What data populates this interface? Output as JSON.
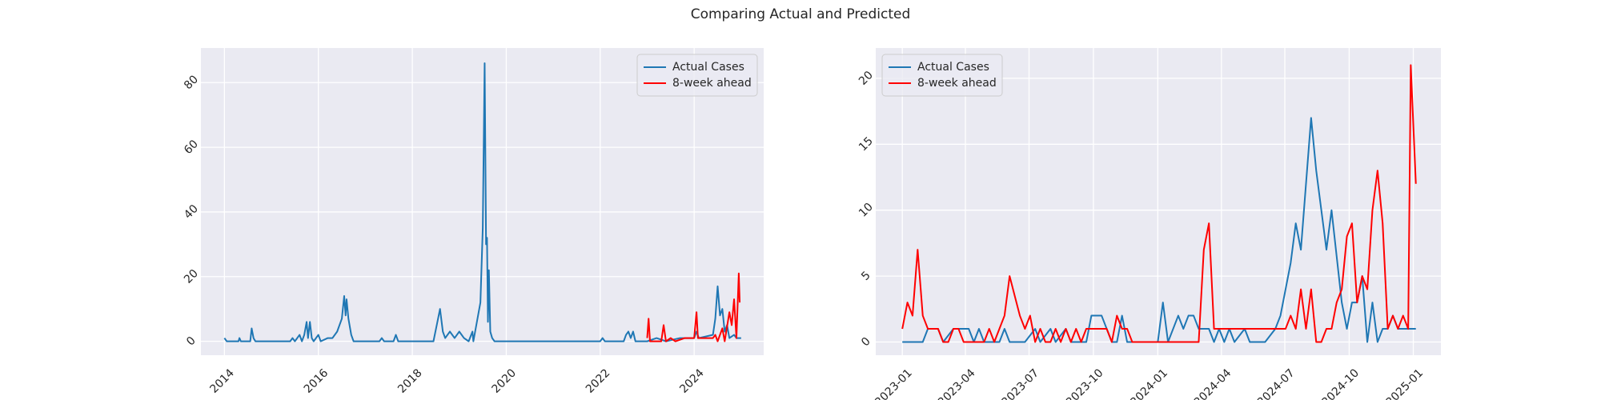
{
  "title": "Comparing Actual and Predicted",
  "chart_data": [
    {
      "type": "line",
      "legend": "upper right",
      "grid": true,
      "xlim": [
        2013.5,
        2025.48
      ],
      "xticks": [
        2014,
        2016,
        2018,
        2020,
        2022,
        2024
      ],
      "ylim": [
        -4.3,
        90.7
      ],
      "yticks": [
        0,
        20,
        40,
        60,
        80
      ],
      "series": [
        {
          "name": "Actual Cases",
          "color": "#1f77b4",
          "x": [
            2014.0,
            2014.05,
            2014.3,
            2014.32,
            2014.35,
            2014.55,
            2014.58,
            2014.62,
            2014.66,
            2015.4,
            2015.45,
            2015.5,
            2015.6,
            2015.65,
            2015.7,
            2015.75,
            2015.78,
            2015.82,
            2015.86,
            2015.9,
            2016.0,
            2016.05,
            2016.2,
            2016.3,
            2016.4,
            2016.5,
            2016.55,
            2016.58,
            2016.6,
            2016.64,
            2016.7,
            2016.75,
            2017.3,
            2017.35,
            2017.4,
            2017.6,
            2017.65,
            2017.7,
            2018.45,
            2018.52,
            2018.59,
            2018.65,
            2018.7,
            2018.8,
            2018.9,
            2019.0,
            2019.1,
            2019.2,
            2019.28,
            2019.3,
            2019.45,
            2019.5,
            2019.54,
            2019.57,
            2019.59,
            2019.61,
            2019.63,
            2019.66,
            2019.7,
            2019.75,
            2022.0,
            2022.05,
            2022.1,
            2022.5,
            2022.55,
            2022.6,
            2022.65,
            2022.7,
            2022.75,
            2023.0,
            2023.2,
            2023.4,
            2023.7,
            2024.0,
            2024.05,
            2024.1,
            2024.4,
            2024.45,
            2024.5,
            2024.55,
            2024.6,
            2024.65,
            2024.7,
            2024.75,
            2024.85,
            2024.9,
            2025.0
          ],
          "values": [
            1,
            0,
            0,
            1,
            0,
            0,
            4,
            1,
            0,
            0,
            1,
            0,
            2,
            0,
            2,
            6,
            1,
            6,
            1,
            0,
            2,
            0,
            1,
            1,
            3,
            7,
            14,
            8,
            13,
            7,
            2,
            0,
            0,
            1,
            0,
            0,
            2,
            0,
            0,
            5,
            10,
            3,
            1,
            3,
            1,
            3,
            1,
            0,
            3,
            0,
            12,
            35,
            86,
            30,
            32,
            6,
            22,
            3,
            1,
            0,
            0,
            1,
            0,
            0,
            2,
            3,
            1,
            3,
            0,
            0,
            1,
            0,
            1,
            1,
            3,
            1,
            2,
            7,
            17,
            8,
            10,
            3,
            5,
            1,
            2,
            1,
            1
          ]
        },
        {
          "name": "8-week ahead",
          "color": "#ff0000",
          "x": [
            2023.0,
            2023.03,
            2023.06,
            2023.3,
            2023.35,
            2023.4,
            2023.5,
            2023.6,
            2023.8,
            2024.0,
            2024.05,
            2024.08,
            2024.4,
            2024.45,
            2024.5,
            2024.6,
            2024.65,
            2024.75,
            2024.8,
            2024.85,
            2024.9,
            2024.95,
            2024.97
          ],
          "values": [
            1,
            7,
            0,
            0,
            5,
            0,
            1,
            0,
            1,
            1,
            9,
            1,
            1,
            2,
            0,
            4,
            0,
            9,
            5,
            13,
            1,
            21,
            12
          ]
        }
      ]
    },
    {
      "type": "line",
      "legend": "upper left",
      "grid": true,
      "xlim": [
        2022.896,
        2025.108
      ],
      "xticks": [
        {
          "value": 2023.0,
          "label": "2023-01"
        },
        {
          "value": 2023.247,
          "label": "2023-04"
        },
        {
          "value": 2023.496,
          "label": "2023-07"
        },
        {
          "value": 2023.748,
          "label": "2023-10"
        },
        {
          "value": 2024.0,
          "label": "2024-01"
        },
        {
          "value": 2024.249,
          "label": "2024-04"
        },
        {
          "value": 2024.497,
          "label": "2024-07"
        },
        {
          "value": 2024.749,
          "label": "2024-10"
        },
        {
          "value": 2025.0,
          "label": "2025-01"
        }
      ],
      "ylim": [
        -1.0,
        22.3
      ],
      "yticks": [
        0,
        5,
        10,
        15,
        20
      ],
      "series": [
        {
          "name": "Actual Cases",
          "color": "#1f77b4",
          "x": [
            2023.0,
            2023.08,
            2023.1,
            2023.14,
            2023.16,
            2023.2,
            2023.26,
            2023.28,
            2023.3,
            2023.32,
            2023.38,
            2023.4,
            2023.42,
            2023.48,
            2023.52,
            2023.54,
            2023.58,
            2023.6,
            2023.64,
            2023.66,
            2023.72,
            2023.74,
            2023.78,
            2023.82,
            2023.84,
            2023.86,
            2023.88,
            2023.94,
            2024.0,
            2024.02,
            2024.04,
            2024.08,
            2024.1,
            2024.12,
            2024.14,
            2024.16,
            2024.2,
            2024.22,
            2024.24,
            2024.26,
            2024.28,
            2024.3,
            2024.34,
            2024.36,
            2024.42,
            2024.46,
            2024.48,
            2024.52,
            2024.54,
            2024.56,
            2024.6,
            2024.62,
            2024.64,
            2024.66,
            2024.68,
            2024.72,
            2024.74,
            2024.76,
            2024.78,
            2024.8,
            2024.82,
            2024.84,
            2024.86,
            2024.88,
            2024.9,
            2024.92,
            2024.94,
            2025.01
          ],
          "values": [
            0,
            0,
            1,
            1,
            0,
            1,
            1,
            0,
            1,
            0,
            0,
            1,
            0,
            0,
            1,
            0,
            1,
            0,
            1,
            0,
            0,
            2,
            2,
            0,
            0,
            2,
            0,
            0,
            0,
            3,
            0,
            2,
            1,
            2,
            2,
            1,
            1,
            0,
            1,
            0,
            1,
            0,
            1,
            0,
            0,
            1,
            2,
            6,
            9,
            7,
            17,
            13,
            10,
            7,
            10,
            3,
            1,
            3,
            3,
            5,
            0,
            3,
            0,
            1,
            1,
            2,
            1,
            1
          ]
        },
        {
          "name": "8-week ahead",
          "color": "#ff0000",
          "x": [
            2023.0,
            2023.02,
            2023.04,
            2023.06,
            2023.08,
            2023.1,
            2023.14,
            2023.16,
            2023.18,
            2023.2,
            2023.22,
            2023.24,
            2023.32,
            2023.34,
            2023.36,
            2023.38,
            2023.4,
            2023.42,
            2023.46,
            2023.48,
            2023.5,
            2023.52,
            2023.54,
            2023.56,
            2023.58,
            2023.6,
            2023.62,
            2023.64,
            2023.66,
            2023.68,
            2023.7,
            2023.72,
            2023.74,
            2023.8,
            2023.82,
            2023.84,
            2023.86,
            2023.88,
            2023.9,
            2024.16,
            2024.18,
            2024.2,
            2024.22,
            2024.5,
            2024.52,
            2024.54,
            2024.56,
            2024.58,
            2024.6,
            2024.62,
            2024.64,
            2024.66,
            2024.68,
            2024.7,
            2024.72,
            2024.74,
            2024.76,
            2024.78,
            2024.8,
            2024.82,
            2024.84,
            2024.86,
            2024.88,
            2024.9,
            2024.92,
            2024.94,
            2024.96,
            2024.98,
            2024.99,
            2025.01
          ],
          "values": [
            1,
            3,
            2,
            7,
            2,
            1,
            1,
            0,
            0,
            1,
            1,
            0,
            0,
            1,
            0,
            1,
            2,
            5,
            2,
            1,
            2,
            0,
            1,
            0,
            0,
            1,
            0,
            1,
            0,
            1,
            0,
            1,
            1,
            1,
            0,
            2,
            1,
            1,
            0,
            0,
            7,
            9,
            1,
            1,
            2,
            1,
            4,
            1,
            4,
            0,
            0,
            1,
            1,
            3,
            4,
            8,
            9,
            3,
            5,
            4,
            10,
            13,
            9,
            1,
            2,
            1,
            2,
            1,
            21,
            12
          ]
        }
      ]
    }
  ]
}
